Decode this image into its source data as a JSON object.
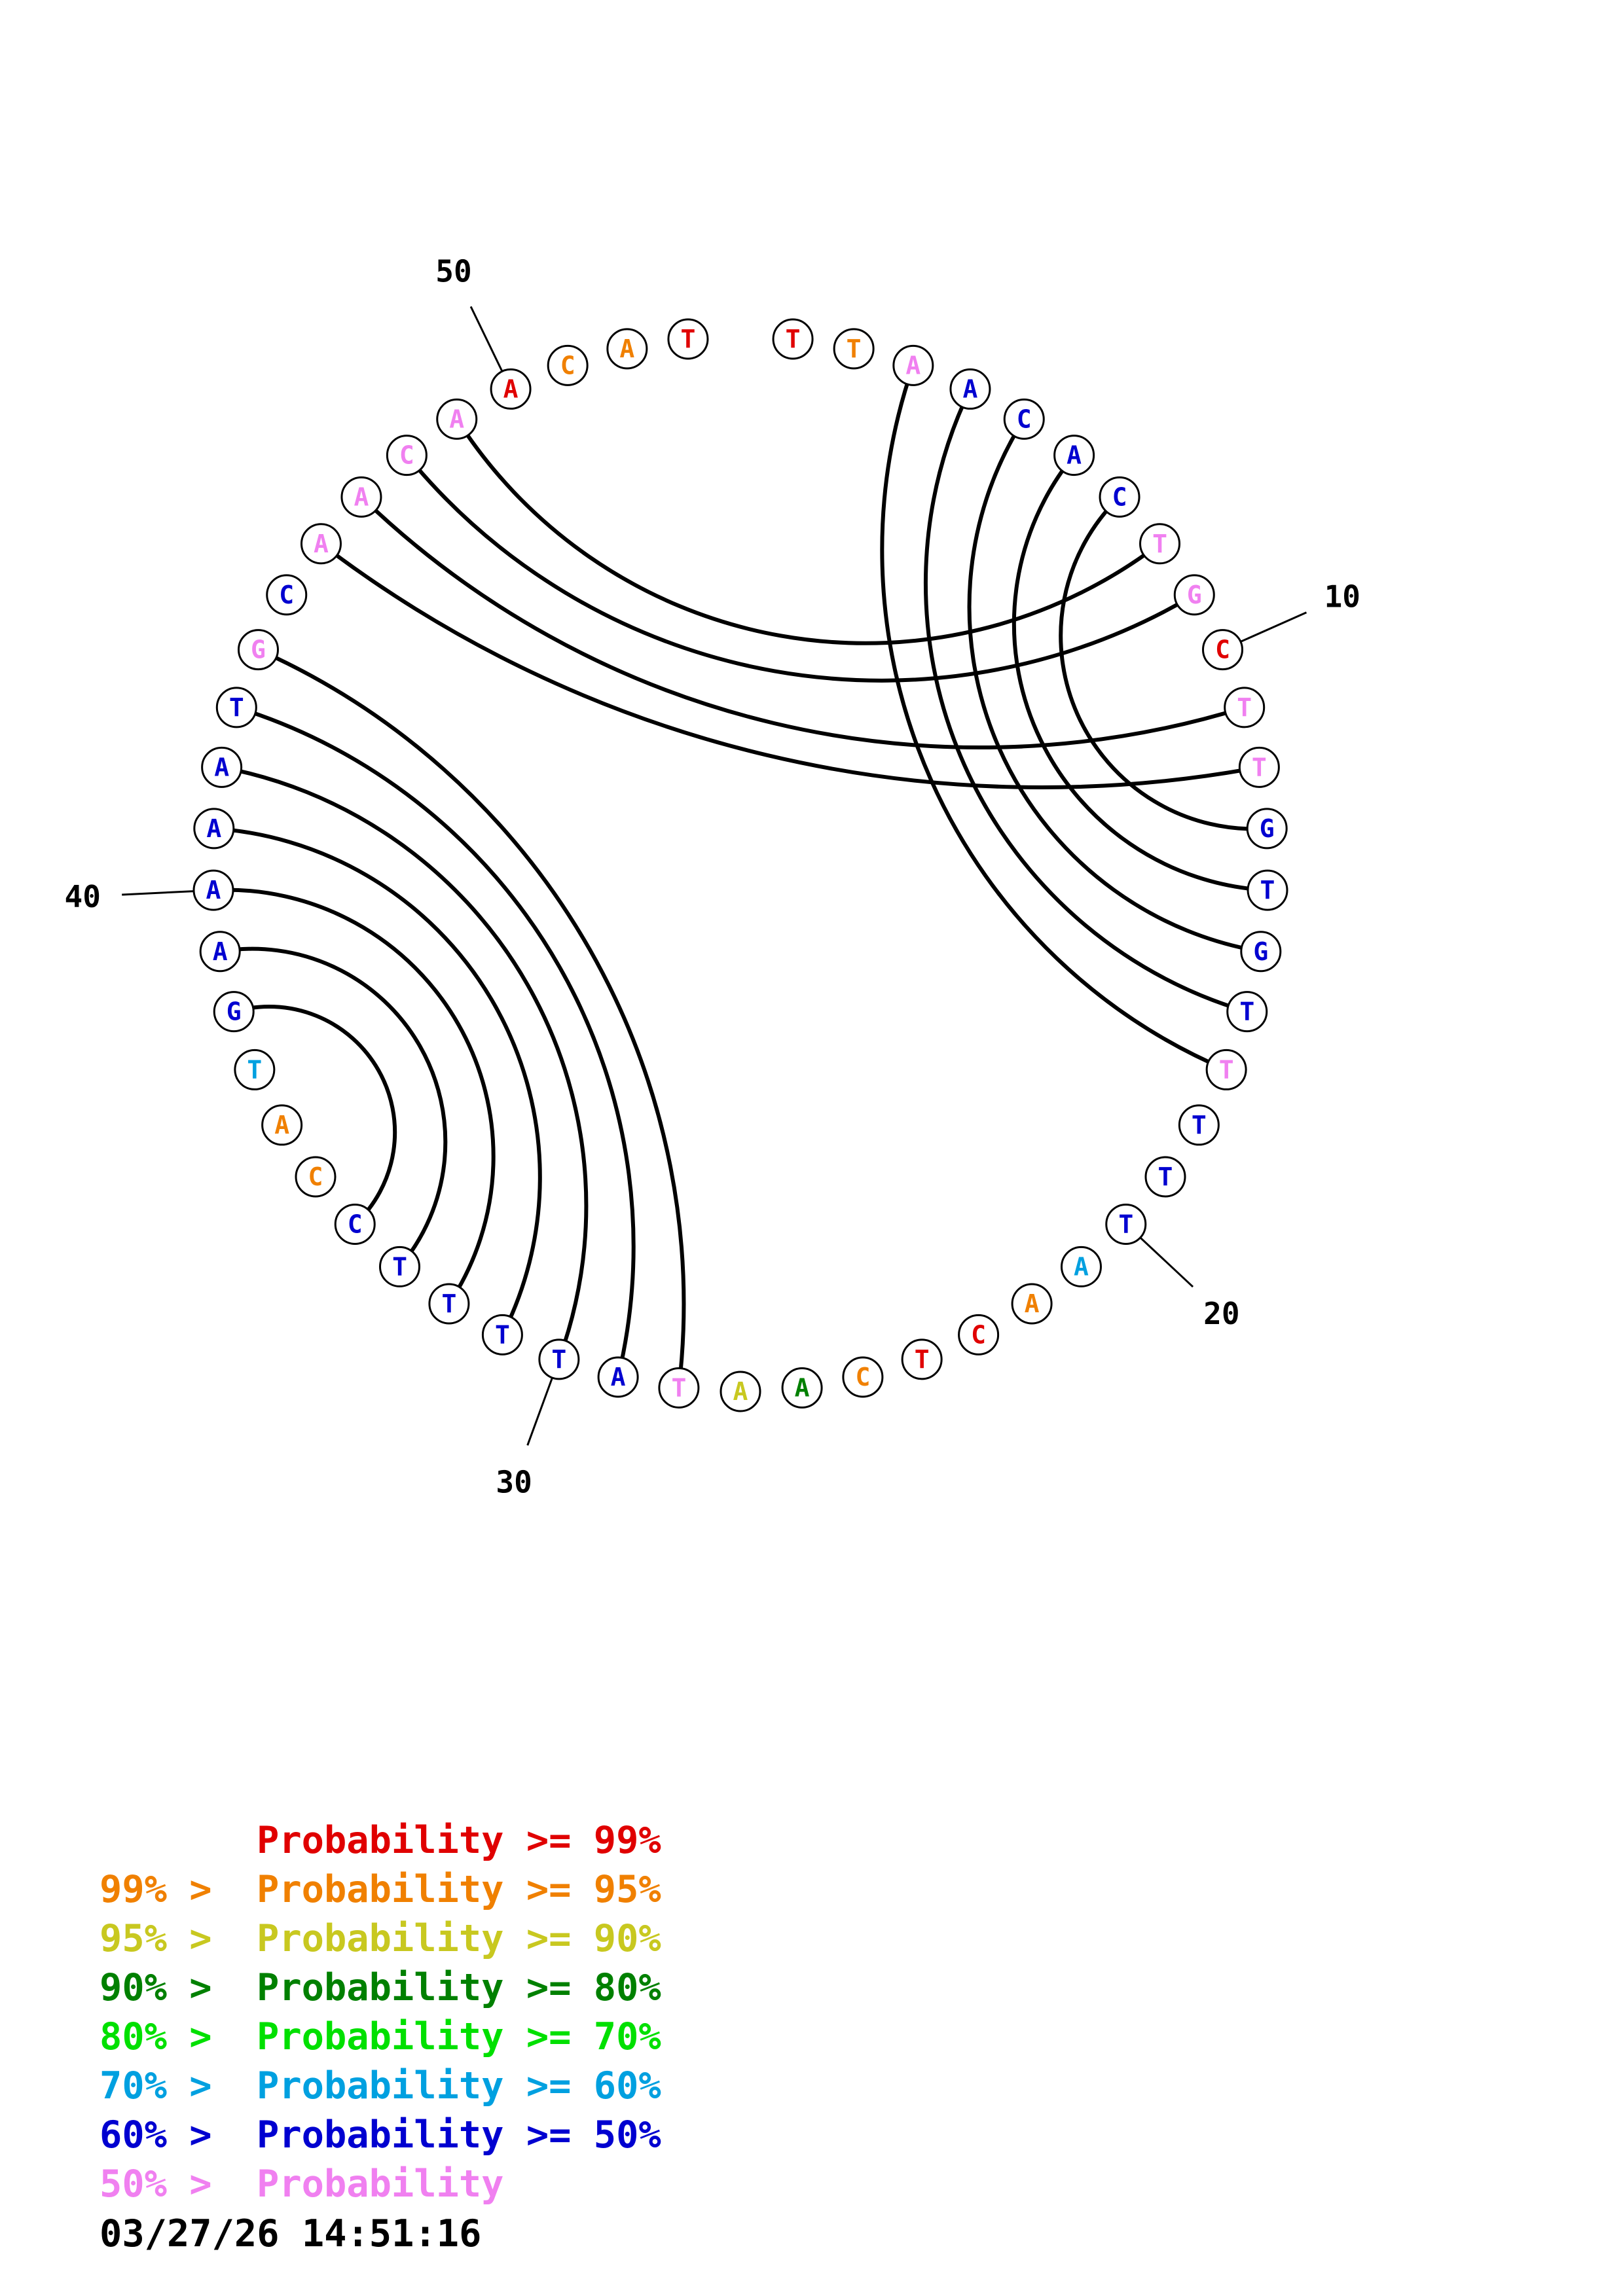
{
  "colors": {
    "p99": "#e00000",
    "p95": "#f08000",
    "p90": "#c8c820",
    "p80": "#008000",
    "p70": "#00e000",
    "p60": "#00a0e0",
    "p50": "#0000d0",
    "plt50": "#f080f0"
  },
  "sequence": [
    {
      "n": 1,
      "base": "T",
      "prob": "p99"
    },
    {
      "n": 2,
      "base": "T",
      "prob": "p95"
    },
    {
      "n": 3,
      "base": "A",
      "prob": "plt50"
    },
    {
      "n": 4,
      "base": "A",
      "prob": "p50"
    },
    {
      "n": 5,
      "base": "C",
      "prob": "p50"
    },
    {
      "n": 6,
      "base": "A",
      "prob": "p50"
    },
    {
      "n": 7,
      "base": "C",
      "prob": "p50"
    },
    {
      "n": 8,
      "base": "T",
      "prob": "plt50"
    },
    {
      "n": 9,
      "base": "G",
      "prob": "plt50"
    },
    {
      "n": 10,
      "base": "C",
      "prob": "p99"
    },
    {
      "n": 11,
      "base": "T",
      "prob": "plt50"
    },
    {
      "n": 12,
      "base": "T",
      "prob": "plt50"
    },
    {
      "n": 13,
      "base": "G",
      "prob": "p50"
    },
    {
      "n": 14,
      "base": "T",
      "prob": "p50"
    },
    {
      "n": 15,
      "base": "G",
      "prob": "p50"
    },
    {
      "n": 16,
      "base": "T",
      "prob": "p50"
    },
    {
      "n": 17,
      "base": "T",
      "prob": "plt50"
    },
    {
      "n": 18,
      "base": "T",
      "prob": "p50"
    },
    {
      "n": 19,
      "base": "T",
      "prob": "p50"
    },
    {
      "n": 20,
      "base": "T",
      "prob": "p50"
    },
    {
      "n": 21,
      "base": "A",
      "prob": "p60"
    },
    {
      "n": 22,
      "base": "A",
      "prob": "p95"
    },
    {
      "n": 23,
      "base": "C",
      "prob": "p99"
    },
    {
      "n": 24,
      "base": "T",
      "prob": "p99"
    },
    {
      "n": 25,
      "base": "C",
      "prob": "p95"
    },
    {
      "n": 26,
      "base": "A",
      "prob": "p80"
    },
    {
      "n": 27,
      "base": "A",
      "prob": "p90"
    },
    {
      "n": 28,
      "base": "T",
      "prob": "plt50"
    },
    {
      "n": 29,
      "base": "A",
      "prob": "p50"
    },
    {
      "n": 30,
      "base": "T",
      "prob": "p50"
    },
    {
      "n": 31,
      "base": "T",
      "prob": "p50"
    },
    {
      "n": 32,
      "base": "T",
      "prob": "p50"
    },
    {
      "n": 33,
      "base": "T",
      "prob": "p50"
    },
    {
      "n": 34,
      "base": "C",
      "prob": "p50"
    },
    {
      "n": 35,
      "base": "C",
      "prob": "p95"
    },
    {
      "n": 36,
      "base": "A",
      "prob": "p95"
    },
    {
      "n": 37,
      "base": "T",
      "prob": "p60"
    },
    {
      "n": 38,
      "base": "G",
      "prob": "p50"
    },
    {
      "n": 39,
      "base": "A",
      "prob": "p50"
    },
    {
      "n": 40,
      "base": "A",
      "prob": "p50"
    },
    {
      "n": 41,
      "base": "A",
      "prob": "p50"
    },
    {
      "n": 42,
      "base": "A",
      "prob": "p50"
    },
    {
      "n": 43,
      "base": "T",
      "prob": "p50"
    },
    {
      "n": 44,
      "base": "G",
      "prob": "plt50"
    },
    {
      "n": 45,
      "base": "C",
      "prob": "p50"
    },
    {
      "n": 46,
      "base": "A",
      "prob": "plt50"
    },
    {
      "n": 47,
      "base": "A",
      "prob": "plt50"
    },
    {
      "n": 48,
      "base": "C",
      "prob": "plt50"
    },
    {
      "n": 49,
      "base": "A",
      "prob": "plt50"
    },
    {
      "n": 50,
      "base": "A",
      "prob": "p99"
    },
    {
      "n": 51,
      "base": "C",
      "prob": "p95"
    },
    {
      "n": 52,
      "base": "A",
      "prob": "p95"
    },
    {
      "n": 53,
      "base": "T",
      "prob": "p99"
    }
  ],
  "pairs": [
    [
      3,
      17
    ],
    [
      4,
      16
    ],
    [
      5,
      15
    ],
    [
      6,
      14
    ],
    [
      7,
      13
    ],
    [
      8,
      49
    ],
    [
      9,
      48
    ],
    [
      11,
      47
    ],
    [
      12,
      46
    ],
    [
      28,
      44
    ],
    [
      29,
      43
    ],
    [
      30,
      42
    ],
    [
      31,
      41
    ],
    [
      32,
      40
    ],
    [
      33,
      39
    ],
    [
      34,
      38
    ]
  ],
  "tick_labels": [
    "10",
    "20",
    "30",
    "40",
    "50"
  ],
  "legend": [
    {
      "prefix": "",
      "label": "Probability",
      "suffix": ">= 99%",
      "color_key": "p99"
    },
    {
      "prefix": "99% >",
      "label": "Probability",
      "suffix": ">= 95%",
      "color_key": "p95"
    },
    {
      "prefix": "95% >",
      "label": "Probability",
      "suffix": ">= 90%",
      "color_key": "p90"
    },
    {
      "prefix": "90% >",
      "label": "Probability",
      "suffix": ">= 80%",
      "color_key": "p80"
    },
    {
      "prefix": "80% >",
      "label": "Probability",
      "suffix": ">= 70%",
      "color_key": "p70"
    },
    {
      "prefix": "70% >",
      "label": "Probability",
      "suffix": ">= 60%",
      "color_key": "p60"
    },
    {
      "prefix": "60% >",
      "label": "Probability",
      "suffix": ">= 50%",
      "color_key": "p50"
    },
    {
      "prefix": "50% >",
      "label": "Probability",
      "suffix": "",
      "color_key": "plt50"
    }
  ],
  "timestamp": "03/27/26 14:51:16"
}
